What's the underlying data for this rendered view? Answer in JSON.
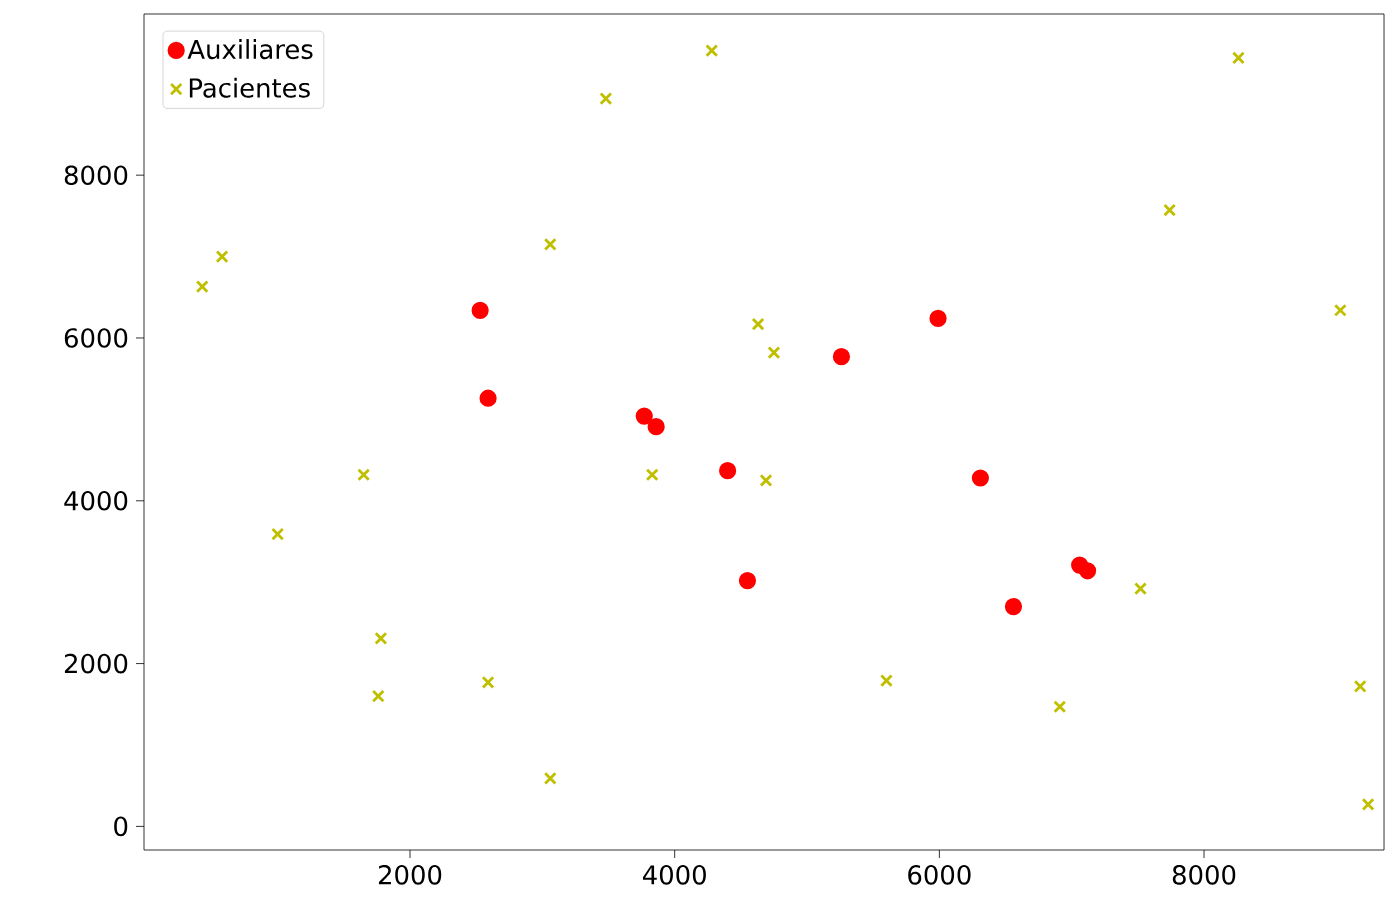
{
  "chart_data": {
    "type": "scatter",
    "xlim": [
      -10,
      9360
    ],
    "ylim": [
      -290,
      9980
    ],
    "xticks": [
      2000,
      4000,
      6000,
      8000
    ],
    "yticks": [
      0,
      2000,
      4000,
      6000,
      8000
    ],
    "legend": "top left",
    "grid": false,
    "series": [
      {
        "name": "Auxiliares",
        "color": "#ff0000",
        "marker": "circle",
        "x": [
          2530,
          2590,
          3770,
          3860,
          4400,
          4550,
          5260,
          5990,
          6310,
          6560,
          7060,
          7120
        ],
        "values": [
          6340,
          5260,
          5040,
          4910,
          4370,
          3020,
          5770,
          6240,
          4280,
          2700,
          3210,
          3140
        ]
      },
      {
        "name": "Pacientes",
        "color": "#bfbf00",
        "marker": "cross",
        "x": [
          430,
          580,
          1000,
          1650,
          1780,
          1760,
          2590,
          3060,
          3060,
          3480,
          3830,
          4280,
          4630,
          4750,
          4690,
          5600,
          6910,
          7520,
          7740,
          8260,
          9030,
          9180,
          9240
        ],
        "values": [
          6630,
          7000,
          3590,
          4320,
          2310,
          1600,
          1770,
          7150,
          590,
          8940,
          4320,
          9530,
          6170,
          5820,
          4250,
          1790,
          1470,
          2920,
          7570,
          9440,
          6340,
          1720,
          270
        ]
      }
    ]
  }
}
